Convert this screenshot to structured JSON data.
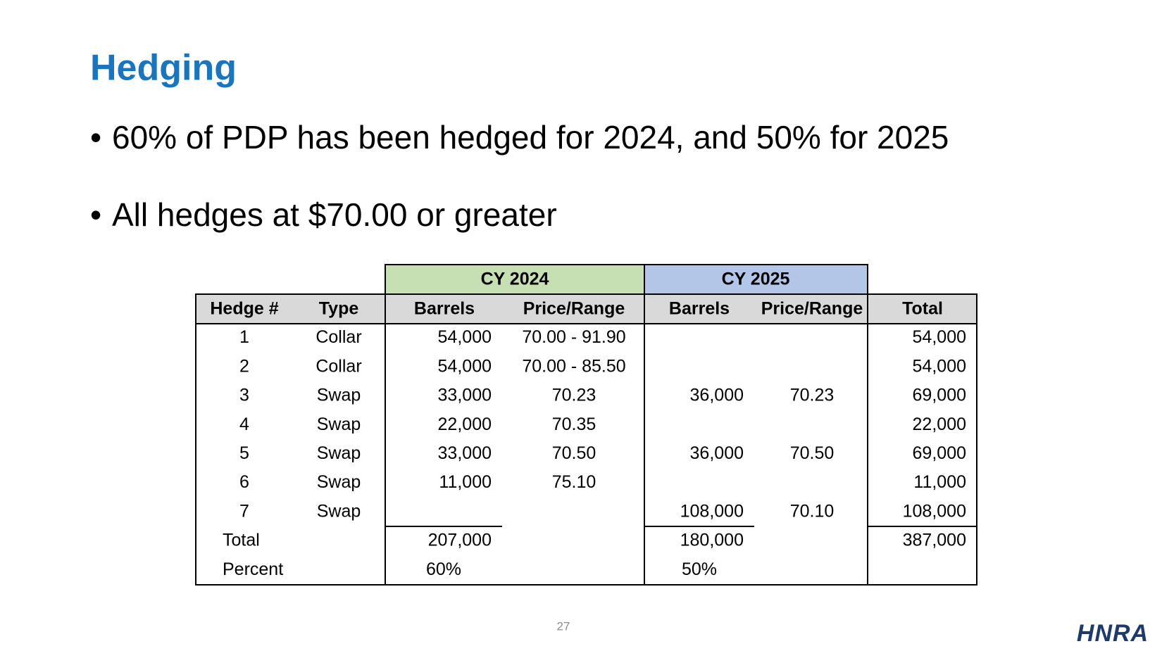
{
  "header": {
    "title": "Hedging"
  },
  "bullets": [
    "60% of PDP has been hedged for 2024, and 50% for 2025",
    "All hedges at $70.00 or greater"
  ],
  "table": {
    "group_headers": [
      "CY 2024",
      "CY 2025"
    ],
    "columns": [
      "Hedge #",
      "Type",
      "Barrels",
      "Price/Range",
      "Barrels",
      "Price/Range",
      "Total"
    ],
    "rows": [
      [
        "1",
        "Collar",
        "54,000",
        "70.00 - 91.90",
        null,
        null,
        "54,000"
      ],
      [
        "2",
        "Collar",
        "54,000",
        "70.00 - 85.50",
        null,
        null,
        "54,000"
      ],
      [
        "3",
        "Swap",
        "33,000",
        "70.23",
        "36,000",
        "70.23",
        "69,000"
      ],
      [
        "4",
        "Swap",
        "22,000",
        "70.35",
        null,
        null,
        "22,000"
      ],
      [
        "5",
        "Swap",
        "33,000",
        "70.50",
        "36,000",
        "70.50",
        "69,000"
      ],
      [
        "6",
        "Swap",
        "11,000",
        "75.10",
        null,
        null,
        "11,000"
      ],
      [
        "7",
        "Swap",
        null,
        null,
        "108,000",
        "70.10",
        "108,000"
      ]
    ],
    "total_row": {
      "label": "Total",
      "cy2024_barrels": "207,000",
      "cy2025_barrels": "180,000",
      "total": "387,000"
    },
    "percent_row": {
      "label": "Percent",
      "cy2024": "60%",
      "cy2025": "50%"
    }
  },
  "page_number": "27",
  "logo": "HNRA"
}
